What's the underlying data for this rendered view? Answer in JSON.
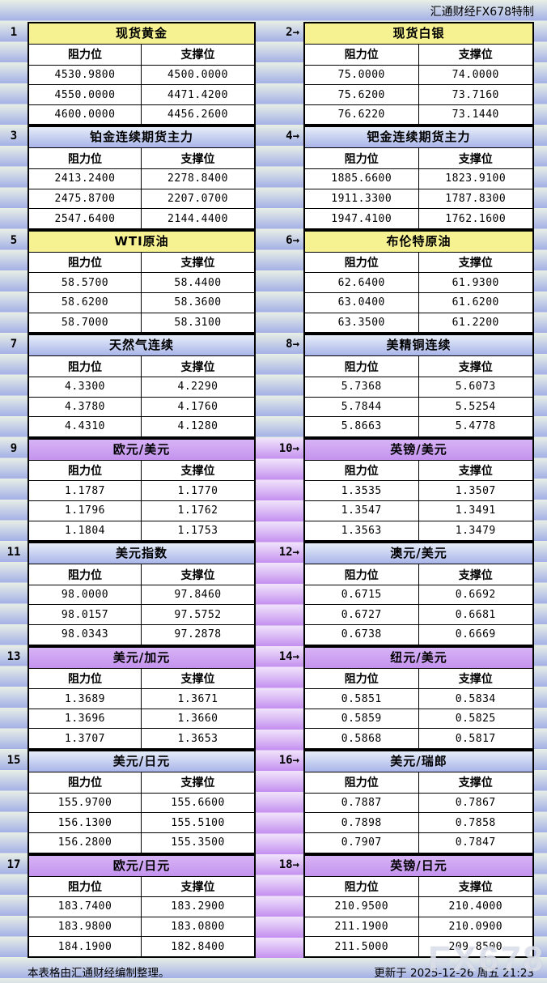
{
  "header": {
    "credit": "汇通财经FX678特制"
  },
  "footer": {
    "note": "本表格由汇通财经编制整理。",
    "updated": "更新于 2025-12-26 周五 21:23"
  },
  "watermark": "FX678",
  "columns": {
    "resistance": "阻力位",
    "support": "支撑位"
  },
  "colors": {
    "yellow_title": "#f6f292",
    "blue_title_top": "#e6edf9",
    "blue_title_bottom": "#a9b5e9",
    "purple_title": "#c9a0f0",
    "stripe_green": "#e8efe5",
    "stripe_blue": "#a4b0e6",
    "stripe_purple": "#c48ff0"
  },
  "panels": [
    {
      "marker": "1",
      "title": "现货黄金",
      "theme": "yellow",
      "rows": [
        [
          "4530.9800",
          "4500.0000"
        ],
        [
          "4550.0000",
          "4471.4200"
        ],
        [
          "4600.0000",
          "4456.2600"
        ]
      ]
    },
    {
      "marker": "2→",
      "title": "现货白银",
      "theme": "yellow",
      "rows": [
        [
          "75.0000",
          "74.0000"
        ],
        [
          "75.6200",
          "73.7160"
        ],
        [
          "76.6220",
          "73.1440"
        ]
      ]
    },
    {
      "marker": "3",
      "title": "铂金连续期货主力",
      "theme": "blue",
      "rows": [
        [
          "2413.2400",
          "2278.8400"
        ],
        [
          "2475.8700",
          "2207.0700"
        ],
        [
          "2547.6400",
          "2144.4400"
        ]
      ]
    },
    {
      "marker": "4→",
      "title": "钯金连续期货主力",
      "theme": "blue",
      "rows": [
        [
          "1885.6600",
          "1823.9100"
        ],
        [
          "1911.3300",
          "1787.8300"
        ],
        [
          "1947.4100",
          "1762.1600"
        ]
      ]
    },
    {
      "marker": "5",
      "title": "WTI原油",
      "theme": "yellow",
      "rows": [
        [
          "58.5700",
          "58.4400"
        ],
        [
          "58.6200",
          "58.3600"
        ],
        [
          "58.7000",
          "58.3100"
        ]
      ]
    },
    {
      "marker": "6→",
      "title": "布伦特原油",
      "theme": "yellow",
      "rows": [
        [
          "62.6400",
          "61.9300"
        ],
        [
          "63.0400",
          "61.6200"
        ],
        [
          "63.3500",
          "61.2200"
        ]
      ]
    },
    {
      "marker": "7",
      "title": "天然气连续",
      "theme": "blue",
      "rows": [
        [
          "4.3300",
          "4.2290"
        ],
        [
          "4.3780",
          "4.1760"
        ],
        [
          "4.4310",
          "4.1280"
        ]
      ]
    },
    {
      "marker": "8→",
      "title": "美精铜连续",
      "theme": "blue",
      "rows": [
        [
          "5.7368",
          "5.6073"
        ],
        [
          "5.7844",
          "5.5254"
        ],
        [
          "5.8663",
          "5.4778"
        ]
      ]
    },
    {
      "marker": "9",
      "title": "欧元/美元",
      "theme": "purple",
      "rows": [
        [
          "1.1787",
          "1.1770"
        ],
        [
          "1.1796",
          "1.1762"
        ],
        [
          "1.1804",
          "1.1753"
        ]
      ]
    },
    {
      "marker": "10→",
      "title": "英镑/美元",
      "theme": "purple",
      "rows": [
        [
          "1.3535",
          "1.3507"
        ],
        [
          "1.3547",
          "1.3491"
        ],
        [
          "1.3563",
          "1.3479"
        ]
      ]
    },
    {
      "marker": "11",
      "title": "美元指数",
      "theme": "blue",
      "rows": [
        [
          "98.0000",
          "97.8460"
        ],
        [
          "98.0157",
          "97.5752"
        ],
        [
          "98.0343",
          "97.2878"
        ]
      ]
    },
    {
      "marker": "12→",
      "title": "澳元/美元",
      "theme": "blue",
      "rows": [
        [
          "0.6715",
          "0.6692"
        ],
        [
          "0.6727",
          "0.6681"
        ],
        [
          "0.6738",
          "0.6669"
        ]
      ]
    },
    {
      "marker": "13",
      "title": "美元/加元",
      "theme": "purple",
      "rows": [
        [
          "1.3689",
          "1.3671"
        ],
        [
          "1.3696",
          "1.3660"
        ],
        [
          "1.3707",
          "1.3653"
        ]
      ]
    },
    {
      "marker": "14→",
      "title": "纽元/美元",
      "theme": "purple",
      "rows": [
        [
          "0.5851",
          "0.5834"
        ],
        [
          "0.5859",
          "0.5825"
        ],
        [
          "0.5868",
          "0.5817"
        ]
      ]
    },
    {
      "marker": "15",
      "title": "美元/日元",
      "theme": "blue",
      "rows": [
        [
          "155.9700",
          "155.6600"
        ],
        [
          "156.1300",
          "155.5100"
        ],
        [
          "156.2800",
          "155.3500"
        ]
      ]
    },
    {
      "marker": "16→",
      "title": "美元/瑞郎",
      "theme": "blue",
      "rows": [
        [
          "0.7887",
          "0.7867"
        ],
        [
          "0.7898",
          "0.7858"
        ],
        [
          "0.7907",
          "0.7847"
        ]
      ]
    },
    {
      "marker": "17",
      "title": "欧元/日元",
      "theme": "purple",
      "rows": [
        [
          "183.7400",
          "183.2900"
        ],
        [
          "183.9800",
          "183.0800"
        ],
        [
          "184.1900",
          "182.8400"
        ]
      ]
    },
    {
      "marker": "18→",
      "title": "英镑/日元",
      "theme": "purple",
      "rows": [
        [
          "210.9500",
          "210.4000"
        ],
        [
          "211.1900",
          "210.0900"
        ],
        [
          "211.5000",
          "209.8500"
        ]
      ]
    }
  ]
}
